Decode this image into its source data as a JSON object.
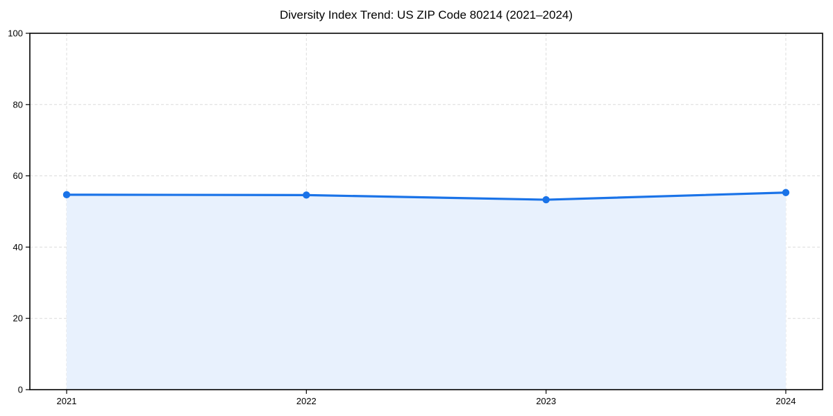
{
  "chart_data": {
    "type": "area",
    "title": "Diversity Index Trend: US ZIP Code 80214 (2021–2024)",
    "categories": [
      "2021",
      "2022",
      "2023",
      "2024"
    ],
    "series": [
      {
        "name": "Diversity Index",
        "values": [
          54.7,
          54.6,
          53.3,
          55.3
        ]
      }
    ],
    "xlabel": "",
    "ylabel": "",
    "ylim": [
      0,
      100
    ],
    "yticks": [
      0,
      20,
      40,
      60,
      80,
      100
    ],
    "grid": true,
    "grid_style": "dashed",
    "legend_position": "none",
    "colors": {
      "line": "#1a73e8",
      "marker": "#1a73e8",
      "area_fill": "#e8f1fd",
      "grid": "#dcdcdc",
      "axis": "#000000",
      "text": "#000000",
      "background": "#ffffff"
    }
  }
}
